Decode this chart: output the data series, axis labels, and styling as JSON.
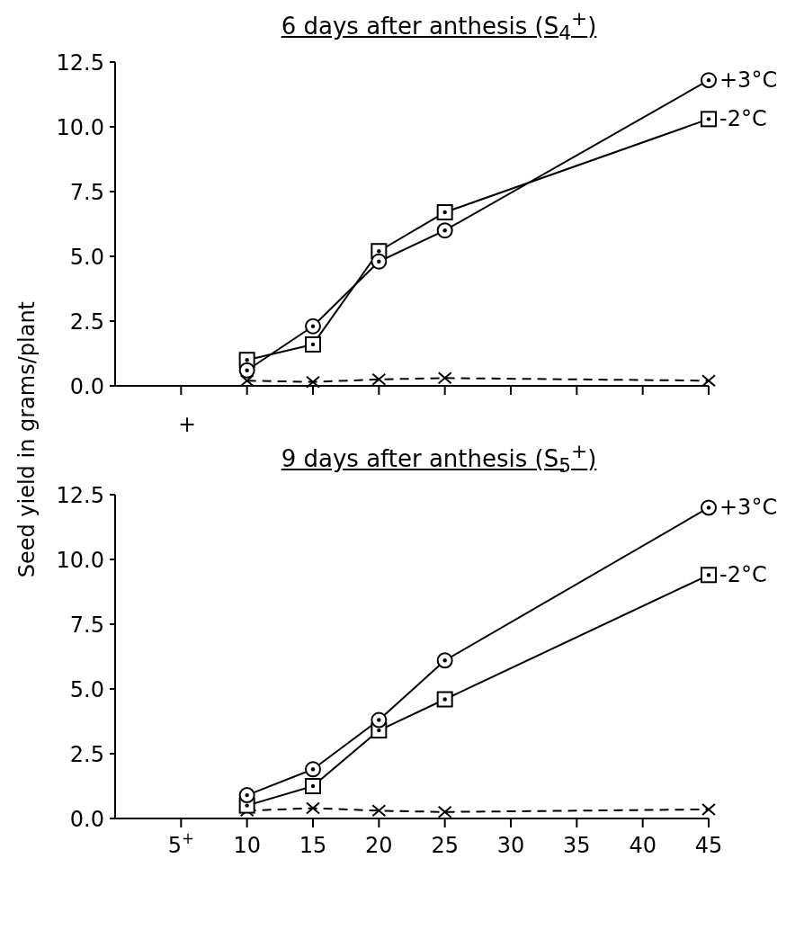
{
  "chart_data": [
    {
      "type": "line",
      "title": "6 days after anthesis (S$_{4}$$^{+}$)",
      "ylabel": "Seed yield in grams/plant",
      "tick_labels": "y",
      "annotations": [
        "+"
      ],
      "xlim": [
        0,
        45
      ],
      "xticks": [
        5,
        10,
        15,
        20,
        25,
        30,
        35,
        40,
        45
      ],
      "ylim": [
        0,
        12.5
      ],
      "yticks": [
        {
          "value": 0,
          "label": "0.0"
        },
        2.5,
        {
          "value": 5,
          "label": "5.0"
        },
        7.5,
        {
          "value": 10,
          "label": "10.0"
        },
        12.5
      ],
      "x": [
        10,
        15,
        20,
        25,
        45
      ],
      "series": [
        {
          "name": "+3°C",
          "color": "#000000",
          "marker": "circle",
          "line_style": "solid",
          "values": [
            0.6,
            2.3,
            4.8,
            6.0,
            11.8
          ]
        },
        {
          "name": "-2°C",
          "color": "#000000",
          "marker": "square",
          "line_style": "solid",
          "values": [
            1.0,
            1.6,
            5.2,
            6.7,
            10.3
          ]
        },
        {
          "color": "#000000",
          "marker": "cross",
          "line_style": "dashed",
          "values": [
            0.2,
            0.15,
            0.25,
            0.3,
            0.2
          ]
        }
      ]
    },
    {
      "type": "line",
      "title": "9 days after anthesis (S$_{5}$$^{+}$)",
      "xlim": [
        0,
        45
      ],
      "xticks": [
        {
          "value": 5,
          "label": "5$^{+}$"
        },
        10,
        15,
        20,
        25,
        30,
        35,
        40,
        45
      ],
      "ylim": [
        0,
        12.5
      ],
      "yticks": [
        {
          "value": 0,
          "label": "0.0"
        },
        2.5,
        {
          "value": 5,
          "label": "5.0"
        },
        7.5,
        {
          "value": 10,
          "label": "10.0"
        },
        12.5
      ],
      "x": [
        10,
        15,
        20,
        25,
        45
      ],
      "series": [
        {
          "name": "+3°C",
          "color": "#000000",
          "marker": "circle",
          "line_style": "solid",
          "values": [
            0.9,
            1.9,
            3.8,
            6.1,
            12.0
          ]
        },
        {
          "name": "-2°C",
          "color": "#000000",
          "marker": "square",
          "line_style": "solid",
          "values": [
            0.5,
            1.25,
            3.4,
            4.6,
            9.4
          ]
        },
        {
          "color": "#000000",
          "marker": "cross",
          "line_style": "dashed",
          "values": [
            0.3,
            0.4,
            0.3,
            0.25,
            0.35
          ]
        }
      ]
    }
  ]
}
